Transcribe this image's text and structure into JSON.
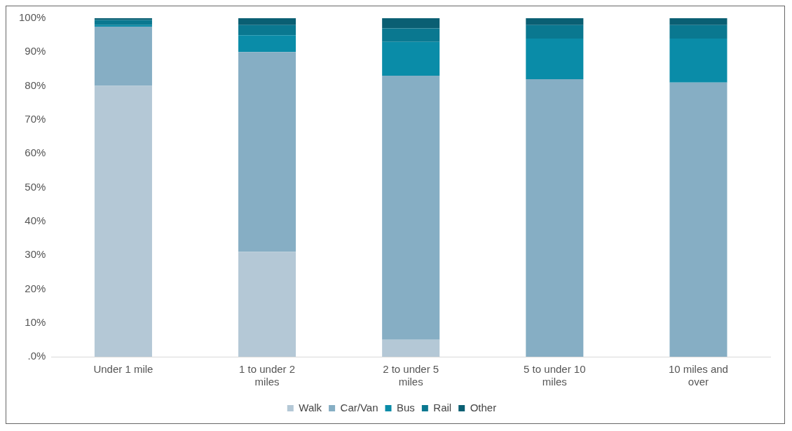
{
  "chart_data": {
    "type": "bar",
    "stacked": true,
    "categories": [
      "Under 1 mile",
      "1 to under 2 miles",
      "2 to under 5 miles",
      "5 to under 10 miles",
      "10 miles and over"
    ],
    "series": [
      {
        "name": "Walk",
        "color": "#b4c8d6",
        "values": [
          80,
          31,
          5,
          0,
          0
        ]
      },
      {
        "name": "Car/Van",
        "color": "#86aec4",
        "values": [
          17.5,
          59,
          78,
          82,
          81
        ]
      },
      {
        "name": "Bus",
        "color": "#0a8ca8",
        "values": [
          0.5,
          5,
          10,
          12,
          13
        ]
      },
      {
        "name": "Rail",
        "color": "#0a7890",
        "values": [
          1.5,
          3,
          4,
          4,
          4
        ]
      },
      {
        "name": "Other",
        "color": "#0a5f73",
        "values": [
          0.5,
          2,
          3,
          2,
          2
        ]
      }
    ],
    "ylim": [
      0,
      100
    ],
    "yticks": [
      {
        "value": 0,
        "label": ".0%"
      },
      {
        "value": 10,
        "label": "10%"
      },
      {
        "value": 20,
        "label": "20%"
      },
      {
        "value": 30,
        "label": "30%"
      },
      {
        "value": 40,
        "label": "40%"
      },
      {
        "value": 50,
        "label": "50%"
      },
      {
        "value": 60,
        "label": "60%"
      },
      {
        "value": 70,
        "label": "70%"
      },
      {
        "value": 80,
        "label": "80%"
      },
      {
        "value": 90,
        "label": "90%"
      },
      {
        "value": 100,
        "label": "100%"
      }
    ],
    "grid": false,
    "legend": "bottom"
  }
}
